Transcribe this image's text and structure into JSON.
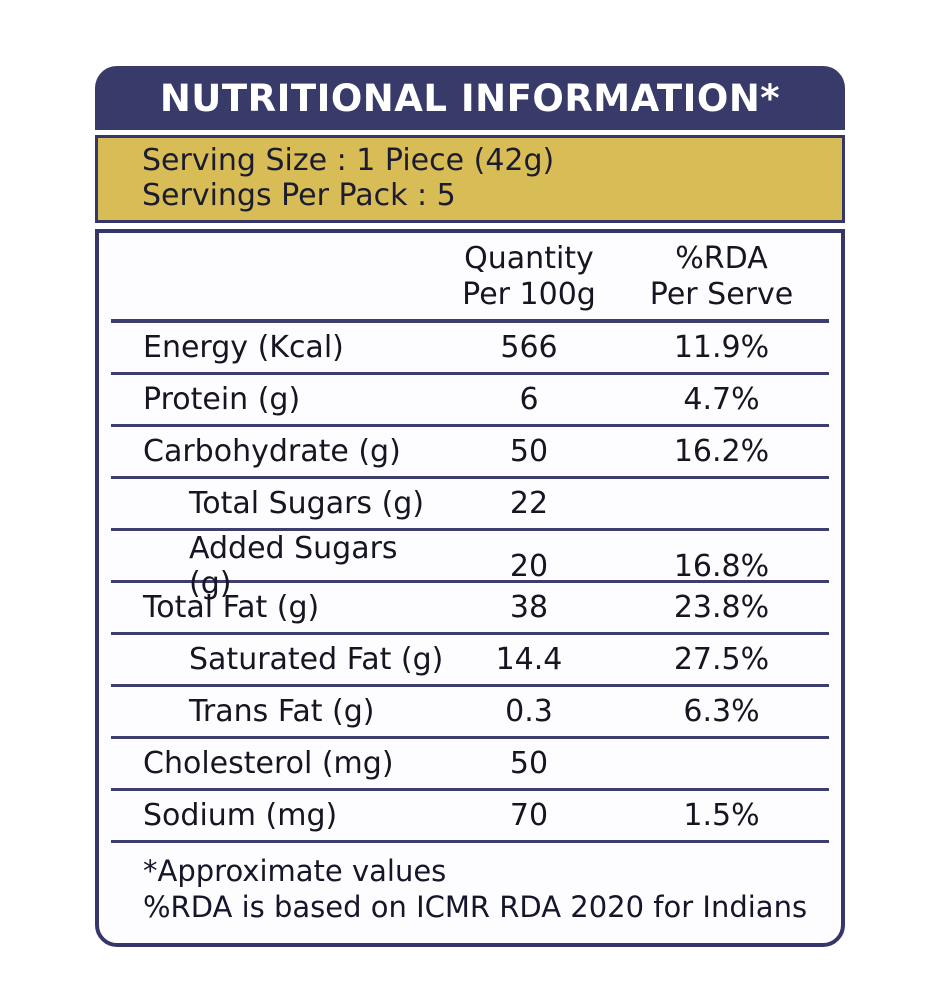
{
  "colors": {
    "navy": "#383a69",
    "gold": "#d8bc55",
    "rule": "#3d3e6d",
    "text": "#161622",
    "title_text": "#ffffff"
  },
  "header": {
    "title": "NUTRITIONAL INFORMATION*"
  },
  "serving": {
    "line1": "Serving Size : 1 Piece (42g)",
    "line2": "Servings Per Pack : 5"
  },
  "table": {
    "columns": {
      "qty_line1": "Quantity",
      "qty_line2": "Per 100g",
      "rda_line1": "%RDA",
      "rda_line2": "Per Serve"
    },
    "rows": [
      {
        "label": "Energy (Kcal)",
        "qty": "566",
        "rda": "11.9%"
      },
      {
        "label": "Protein (g)",
        "qty": "6",
        "rda": "4.7%"
      },
      {
        "label": "Carbohydrate (g)",
        "qty": "50",
        "rda": "16.2%"
      },
      {
        "label": "Total Sugars (g)",
        "qty": "22",
        "rda": ""
      },
      {
        "label": "Added Sugars (g)",
        "qty": "20",
        "rda": "16.8%"
      },
      {
        "label": "Total Fat (g)",
        "qty": "38",
        "rda": "23.8%"
      },
      {
        "label": "Saturated Fat (g)",
        "qty": "14.4",
        "rda": "27.5%"
      },
      {
        "label": "Trans Fat (g)",
        "qty": "0.3",
        "rda": "6.3%"
      },
      {
        "label": "Cholesterol (mg)",
        "qty": "50",
        "rda": ""
      },
      {
        "label": "Sodium (mg)",
        "qty": "70",
        "rda": "1.5%"
      }
    ],
    "footer": {
      "line1": "*Approximate values",
      "line2": "%RDA is based on ICMR RDA 2020 for Indians"
    }
  }
}
